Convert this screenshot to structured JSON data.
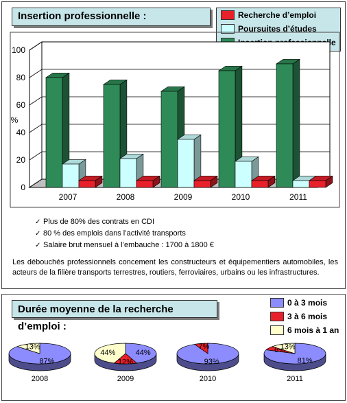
{
  "section1": {
    "title": "Insertion professionnelle :",
    "legend": [
      {
        "label": "Recherche d’emploi",
        "color": "#e8202a"
      },
      {
        "label": "Poursuites d’études",
        "color": "#ccffff"
      },
      {
        "label": "Insertion professionnelle",
        "color": "#2e8b57"
      }
    ],
    "bullets": [
      "Plus de 80% des contrats en CDI",
      "80 % des emplois dans l’activité transports",
      "Salaire brut mensuel à l’embauche : 1700 à 1800 €"
    ],
    "paragraph": "Les débouchés professionnels concement les constructeurs et équipementiers automobiles, les acteurs de la filière transports terrestres, routiers, ferroviaires, urbains ou les infrastructures."
  },
  "section2": {
    "title": "Durée moyenne de la recherche d’emploi :",
    "legend": [
      {
        "label": "0 à 3 mois",
        "color": "#8c8cff"
      },
      {
        "label": "3 à 6 mois",
        "color": "#e8202a"
      },
      {
        "label": "6 mois à 1 an",
        "color": "#ffffcc"
      }
    ]
  },
  "chart_data": [
    {
      "type": "bar",
      "title": "Insertion professionnelle :",
      "ylabel": "%",
      "ylim": [
        0,
        100
      ],
      "yticks": [
        0,
        20,
        40,
        60,
        80,
        100
      ],
      "categories": [
        "2007",
        "2008",
        "2009",
        "2010",
        "2011"
      ],
      "series": [
        {
          "name": "Insertion professionnelle",
          "values": [
            80,
            75,
            70,
            85,
            90
          ],
          "color": "#2e8b57"
        },
        {
          "name": "Poursuites d’études",
          "values": [
            17,
            21,
            35,
            19,
            5
          ],
          "color": "#ccffff"
        },
        {
          "name": "Recherche d’emploi",
          "values": [
            5,
            5,
            5,
            5,
            5
          ],
          "color": "#e8202a"
        }
      ]
    },
    {
      "type": "pie",
      "title": "Durée moyenne de la recherche d’emploi :",
      "categories": [
        "0 à 3 mois",
        "3 à 6 mois",
        "6 mois à 1 an"
      ],
      "pies": [
        {
          "label": "2008",
          "values": [
            87,
            0,
            13
          ],
          "labels": [
            "87%",
            "",
            "13%"
          ]
        },
        {
          "label": "2009",
          "values": [
            44,
            12,
            44
          ],
          "labels": [
            "44%",
            "12%",
            "44%"
          ]
        },
        {
          "label": "2010",
          "values": [
            93,
            7,
            0
          ],
          "labels": [
            "93%",
            "7%",
            ""
          ]
        },
        {
          "label": "2011",
          "values": [
            81,
            6,
            13
          ],
          "labels": [
            "81%",
            "6%",
            "13%"
          ]
        }
      ]
    }
  ]
}
